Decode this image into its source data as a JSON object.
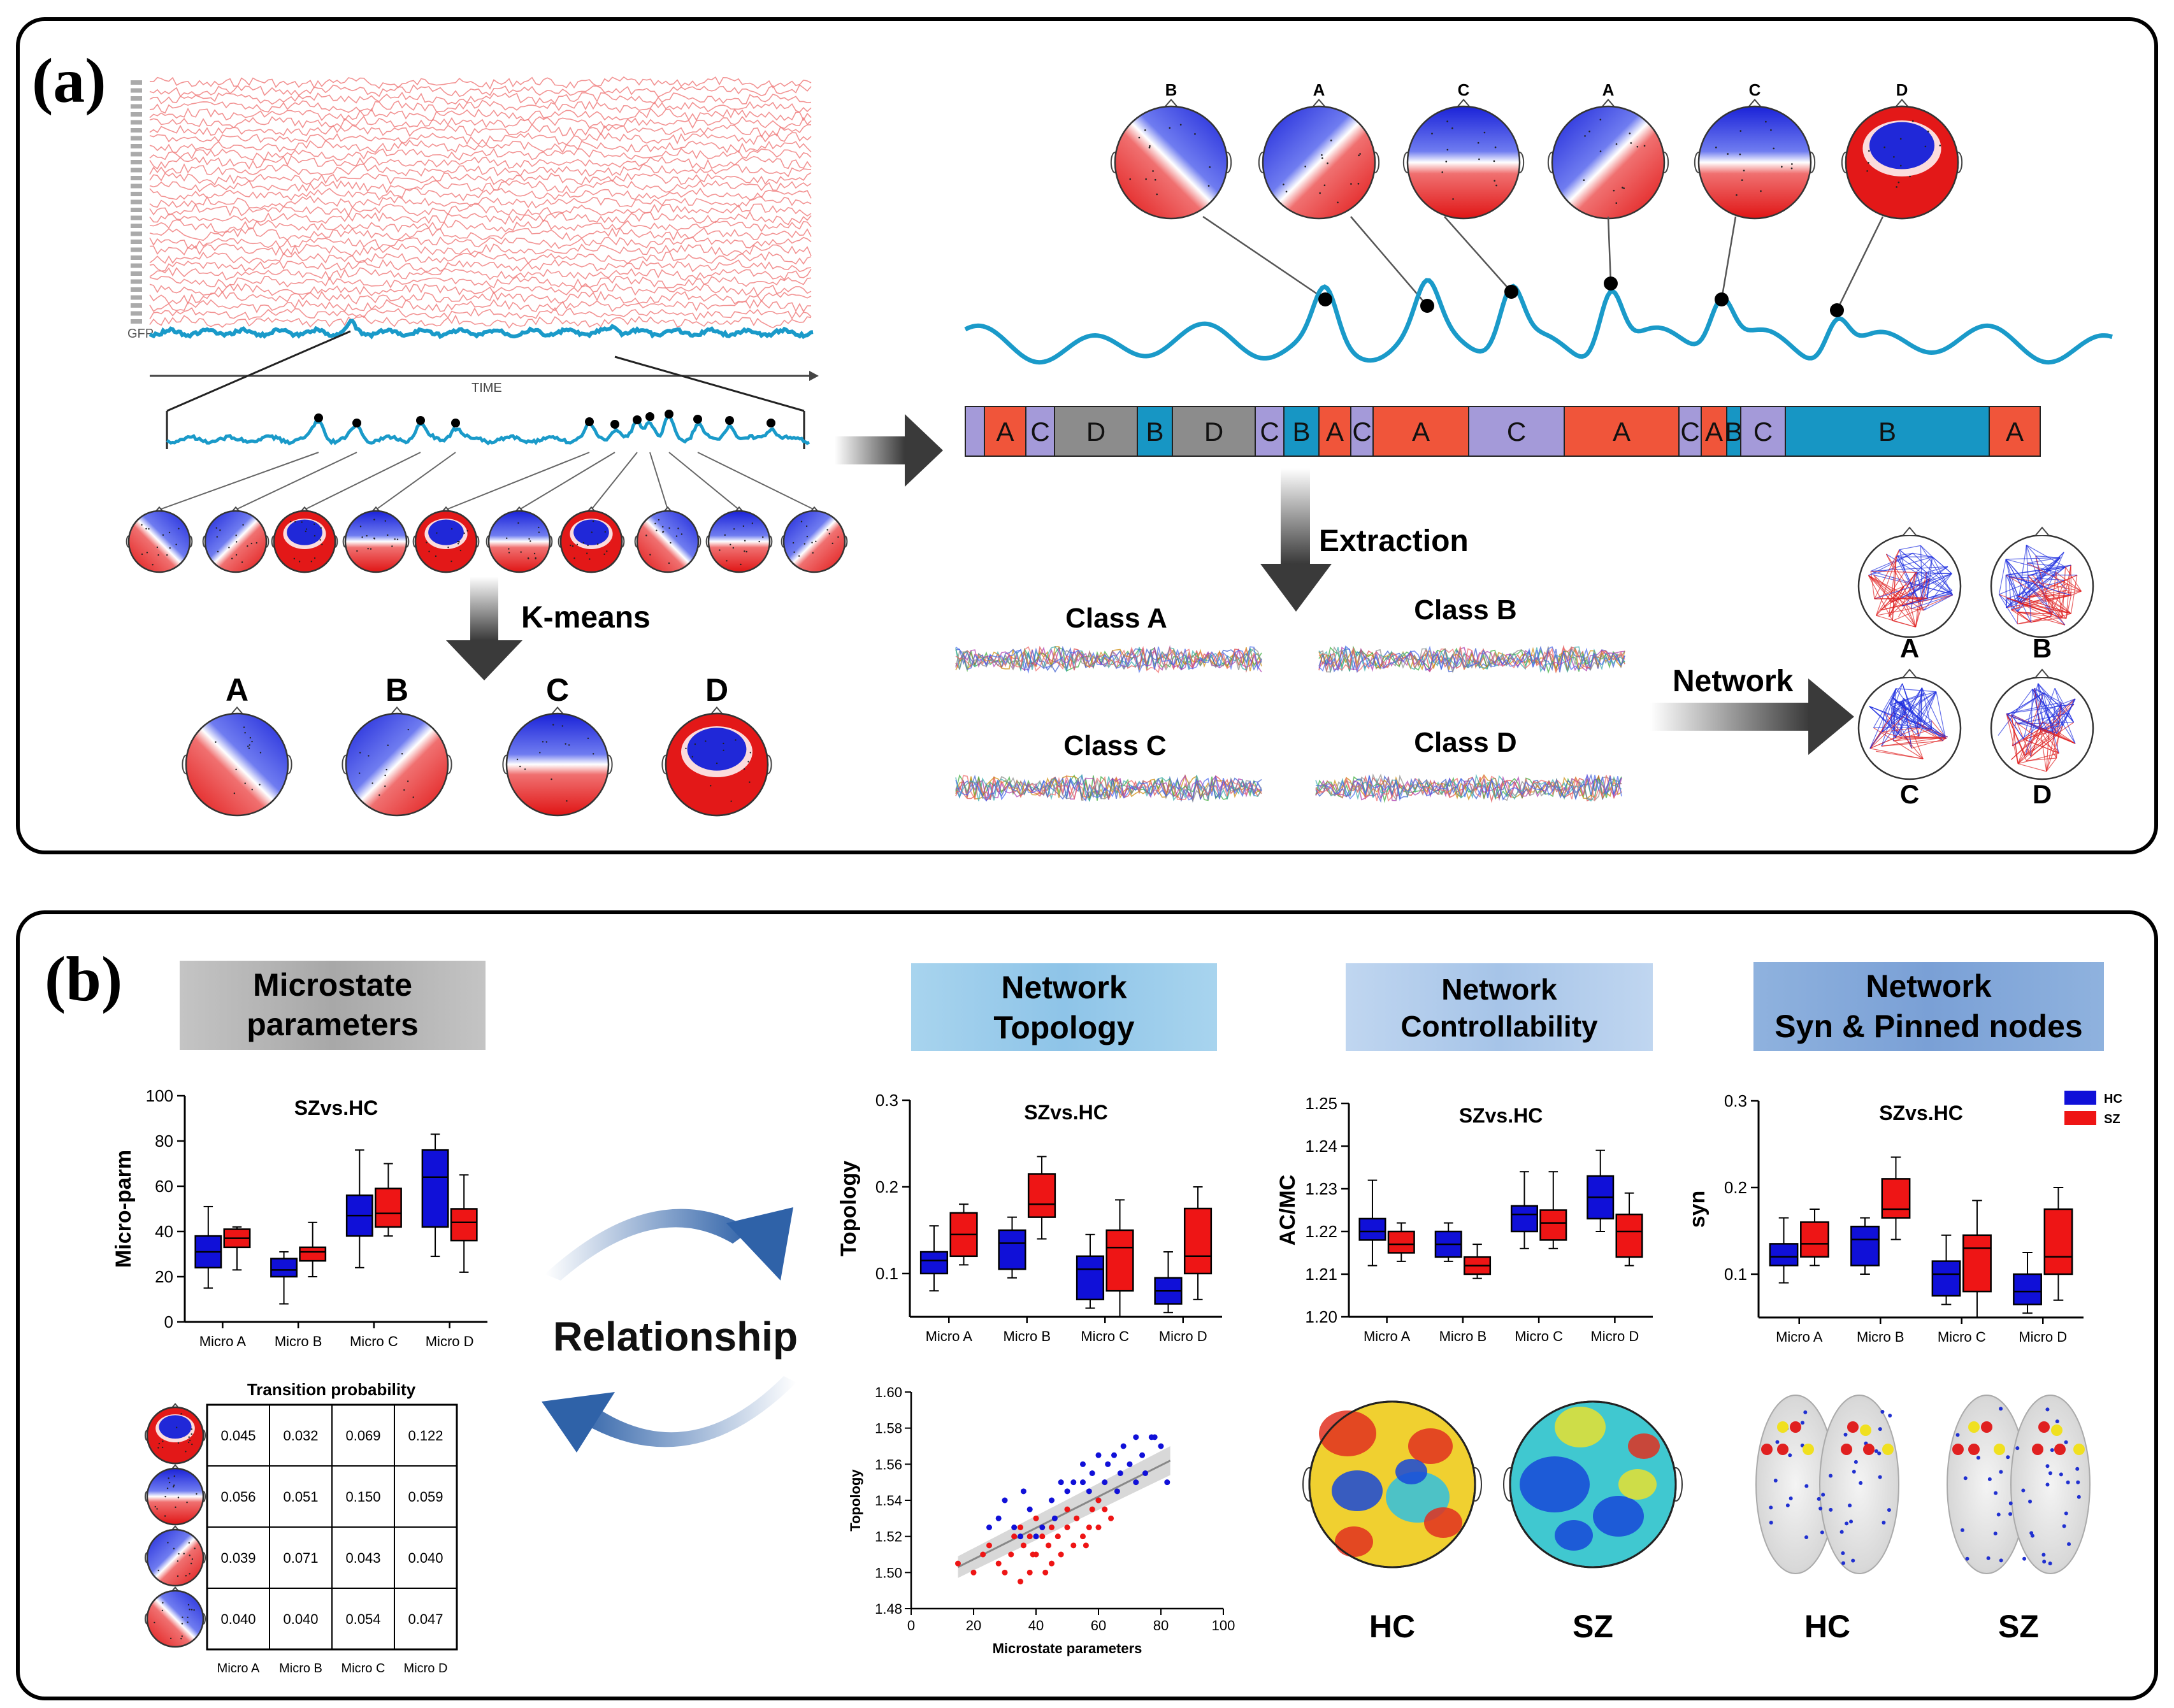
{
  "panel_a": {
    "label": "(a)",
    "eeg_time_label": "TIME",
    "gfp_label": "GFP",
    "kmeans_label": "K-means",
    "kmeans_classes": [
      "A",
      "B",
      "C",
      "D"
    ],
    "top_map_labels": [
      "B",
      "A",
      "C",
      "A",
      "C",
      "D"
    ],
    "sequence": [
      "",
      "A",
      "C",
      "D",
      "B",
      "D",
      "C",
      "B",
      "A",
      "C",
      "A",
      "C",
      "A",
      "C",
      "A",
      "B",
      "C",
      "B",
      "A"
    ],
    "extraction_label": "Extraction",
    "class_labels": [
      "Class A",
      "Class B",
      "Class C",
      "Class D"
    ],
    "network_label": "Network",
    "network_classes": [
      "A",
      "B",
      "C",
      "D"
    ]
  },
  "panel_b": {
    "label": "(b)",
    "headers": {
      "microstate": [
        "Microstate",
        "parameters"
      ],
      "topology": [
        "Network",
        "Topology"
      ],
      "controllability": [
        "Network",
        "Controllability"
      ],
      "syn": [
        "Network",
        "Syn & Pinned nodes"
      ]
    },
    "relationship_label": "Relationship",
    "transition_title": "Transition probability",
    "transition_matrix": [
      [
        "0.045",
        "0.032",
        "0.069",
        "0.122"
      ],
      [
        "0.056",
        "0.051",
        "0.150",
        "0.059"
      ],
      [
        "0.039",
        "0.071",
        "0.043",
        "0.040"
      ],
      [
        "0.040",
        "0.040",
        "0.054",
        "0.047"
      ]
    ],
    "transition_cols": [
      "Micro A",
      "Micro B",
      "Micro C",
      "Micro D"
    ],
    "hc_label": "HC",
    "sz_label": "SZ",
    "legend": [
      {
        "name": "HC",
        "color": "#0000e6"
      },
      {
        "name": "SZ",
        "color": "#ee1111"
      }
    ]
  },
  "colors": {
    "hc": "#1010d8",
    "sz": "#ee1515",
    "gfp": "#1a9ac9",
    "eeg": "#f08080",
    "seq_A": "#f0553a",
    "seq_B": "#1796c4",
    "seq_C": "#a49ad9",
    "seq_D": "#8c8c8c"
  },
  "chart_data": [
    {
      "type": "box",
      "id": "micro-param-box",
      "title": "SZvs.HC",
      "ylabel": "Micro-parm",
      "xlabel": "",
      "categories": [
        "Micro A",
        "Micro B",
        "Micro C",
        "Micro D"
      ],
      "ylim": [
        0,
        100
      ],
      "yticks": [
        "0",
        "20",
        "40",
        "60",
        "80",
        "100"
      ],
      "series": [
        {
          "name": "HC",
          "boxes": [
            [
              15,
              24,
              31,
              38,
              51
            ],
            [
              8,
              20,
              23,
              28,
              31
            ],
            [
              24,
              38,
              47,
              56,
              76
            ],
            [
              29,
              42,
              64,
              76,
              83
            ]
          ]
        },
        {
          "name": "SZ",
          "boxes": [
            [
              23,
              33,
              37,
              41,
              42
            ],
            [
              20,
              27,
              31,
              33,
              44
            ],
            [
              38,
              42,
              48,
              59,
              70
            ],
            [
              22,
              36,
              44,
              50,
              65
            ]
          ]
        }
      ]
    },
    {
      "type": "box",
      "id": "topology-box",
      "title": "SZvs.HC",
      "ylabel": "Topology",
      "xlabel": "",
      "categories": [
        "Micro A",
        "Micro B",
        "Micro C",
        "Micro D"
      ],
      "ylim": [
        0.05,
        0.3
      ],
      "yticks": [
        "0.1",
        "0.2",
        "0.3"
      ],
      "ytickvals": [
        0.1,
        0.2,
        0.3
      ],
      "series": [
        {
          "name": "HC",
          "boxes": [
            [
              0.08,
              0.1,
              0.115,
              0.125,
              0.155
            ],
            [
              0.095,
              0.105,
              0.135,
              0.15,
              0.165
            ],
            [
              0.06,
              0.07,
              0.105,
              0.12,
              0.145
            ],
            [
              0.055,
              0.065,
              0.08,
              0.095,
              0.125
            ]
          ]
        },
        {
          "name": "SZ",
          "boxes": [
            [
              0.11,
              0.12,
              0.145,
              0.17,
              0.18
            ],
            [
              0.14,
              0.165,
              0.18,
              0.215,
              0.235
            ],
            [
              0.05,
              0.08,
              0.13,
              0.15,
              0.185
            ],
            [
              0.07,
              0.1,
              0.12,
              0.175,
              0.2
            ]
          ]
        }
      ]
    },
    {
      "type": "box",
      "id": "controllability-box",
      "title": "SZvs.HC",
      "ylabel": "AC/MC",
      "xlabel": "",
      "categories": [
        "Micro A",
        "Micro B",
        "Micro C",
        "Micro D"
      ],
      "ylim": [
        1.2,
        1.25
      ],
      "yticks": [
        "1.20",
        "1.21",
        "1.22",
        "1.23",
        "1.24",
        "1.25"
      ],
      "ytickvals": [
        1.2,
        1.21,
        1.22,
        1.23,
        1.24,
        1.25
      ],
      "series": [
        {
          "name": "HC",
          "boxes": [
            [
              1.212,
              1.218,
              1.22,
              1.223,
              1.232
            ],
            [
              1.213,
              1.214,
              1.217,
              1.22,
              1.222
            ],
            [
              1.216,
              1.22,
              1.224,
              1.226,
              1.234
            ],
            [
              1.22,
              1.223,
              1.228,
              1.233,
              1.239
            ]
          ]
        },
        {
          "name": "SZ",
          "boxes": [
            [
              1.213,
              1.215,
              1.217,
              1.22,
              1.222
            ],
            [
              1.209,
              1.21,
              1.212,
              1.214,
              1.217
            ],
            [
              1.216,
              1.218,
              1.222,
              1.225,
              1.234
            ],
            [
              1.212,
              1.214,
              1.22,
              1.224,
              1.229
            ]
          ]
        }
      ]
    },
    {
      "type": "box",
      "id": "syn-box",
      "title": "SZvs.HC",
      "ylabel": "syn",
      "xlabel": "",
      "categories": [
        "Micro A",
        "Micro B",
        "Micro C",
        "Micro D"
      ],
      "ylim": [
        0.05,
        0.3
      ],
      "yticks": [
        "0.1",
        "0.2",
        "0.3"
      ],
      "ytickvals": [
        0.1,
        0.2,
        0.3
      ],
      "series": [
        {
          "name": "HC",
          "boxes": [
            [
              0.09,
              0.11,
              0.12,
              0.135,
              0.165
            ],
            [
              0.1,
              0.11,
              0.14,
              0.155,
              0.165
            ],
            [
              0.065,
              0.075,
              0.1,
              0.115,
              0.145
            ],
            [
              0.055,
              0.065,
              0.08,
              0.1,
              0.125
            ]
          ]
        },
        {
          "name": "SZ",
          "boxes": [
            [
              0.11,
              0.12,
              0.135,
              0.16,
              0.175
            ],
            [
              0.14,
              0.165,
              0.175,
              0.21,
              0.235
            ],
            [
              0.05,
              0.08,
              0.13,
              0.145,
              0.185
            ],
            [
              0.07,
              0.1,
              0.12,
              0.175,
              0.2
            ]
          ]
        }
      ]
    },
    {
      "type": "scatter",
      "id": "topology-scatter",
      "title": "",
      "xlabel": "Microstate parameters",
      "ylabel": "Topology",
      "xlim": [
        0,
        100
      ],
      "ylim": [
        1.48,
        1.6
      ],
      "xticks": [
        "0",
        "20",
        "40",
        "60",
        "80",
        "100"
      ],
      "yticks": [
        "1.48",
        "1.50",
        "1.52",
        "1.54",
        "1.56",
        "1.58",
        "1.60"
      ],
      "series": [
        {
          "name": "HC",
          "points": [
            [
              25,
              1.525
            ],
            [
              28,
              1.53
            ],
            [
              33,
              1.525
            ],
            [
              36,
              1.545
            ],
            [
              38,
              1.535
            ],
            [
              40,
              1.52
            ],
            [
              42,
              1.525
            ],
            [
              45,
              1.54
            ],
            [
              48,
              1.55
            ],
            [
              50,
              1.545
            ],
            [
              52,
              1.55
            ],
            [
              55,
              1.56
            ],
            [
              57,
              1.545
            ],
            [
              58,
              1.555
            ],
            [
              60,
              1.565
            ],
            [
              62,
              1.55
            ],
            [
              63,
              1.56
            ],
            [
              65,
              1.565
            ],
            [
              67,
              1.555
            ],
            [
              68,
              1.57
            ],
            [
              70,
              1.56
            ],
            [
              72,
              1.575
            ],
            [
              74,
              1.565
            ],
            [
              75,
              1.555
            ],
            [
              78,
              1.575
            ],
            [
              80,
              1.57
            ],
            [
              82,
              1.55
            ],
            [
              60,
              1.54
            ],
            [
              46,
              1.53
            ],
            [
              35,
              1.52
            ],
            [
              30,
              1.54
            ],
            [
              55,
              1.55
            ],
            [
              66,
              1.545
            ],
            [
              72,
              1.55
            ],
            [
              77,
              1.575
            ]
          ]
        },
        {
          "name": "SZ",
          "points": [
            [
              15,
              1.505
            ],
            [
              20,
              1.5
            ],
            [
              23,
              1.51
            ],
            [
              25,
              1.515
            ],
            [
              28,
              1.505
            ],
            [
              30,
              1.5
            ],
            [
              32,
              1.51
            ],
            [
              35,
              1.495
            ],
            [
              36,
              1.515
            ],
            [
              38,
              1.5
            ],
            [
              40,
              1.51
            ],
            [
              42,
              1.52
            ],
            [
              44,
              1.515
            ],
            [
              45,
              1.505
            ],
            [
              47,
              1.52
            ],
            [
              48,
              1.51
            ],
            [
              50,
              1.525
            ],
            [
              52,
              1.515
            ],
            [
              53,
              1.53
            ],
            [
              55,
              1.52
            ],
            [
              57,
              1.525
            ],
            [
              58,
              1.535
            ],
            [
              60,
              1.525
            ],
            [
              62,
              1.535
            ],
            [
              64,
              1.53
            ],
            [
              40,
              1.53
            ],
            [
              38,
              1.52
            ],
            [
              43,
              1.5
            ],
            [
              50,
              1.535
            ],
            [
              35,
              1.525
            ],
            [
              56,
              1.515
            ],
            [
              45,
              1.525
            ],
            [
              33,
              1.52
            ],
            [
              60,
              1.54
            ],
            [
              39,
              1.51
            ]
          ]
        }
      ],
      "fit": {
        "x": [
          15,
          83
        ],
        "y": [
          1.503,
          1.562
        ]
      }
    }
  ]
}
